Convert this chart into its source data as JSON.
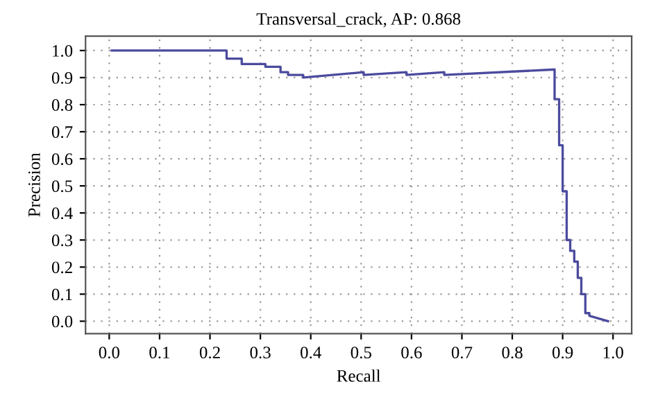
{
  "chart_data": {
    "type": "line",
    "title": "Transversal_crack, AP: 0.868",
    "xlabel": "Recall",
    "ylabel": "Precision",
    "series": [
      {
        "color": "#4b4b9e",
        "x": [
          0.005,
          0.233,
          0.233,
          0.263,
          0.263,
          0.31,
          0.31,
          0.34,
          0.34,
          0.355,
          0.355,
          0.385,
          0.385,
          0.505,
          0.505,
          0.59,
          0.59,
          0.665,
          0.665,
          0.884,
          0.884,
          0.893,
          0.893,
          0.9,
          0.9,
          0.908,
          0.908,
          0.915,
          0.915,
          0.923,
          0.923,
          0.93,
          0.93,
          0.937,
          0.937,
          0.945,
          0.945,
          0.953,
          0.953,
          0.99
        ],
        "values": [
          1.0,
          1.0,
          0.97,
          0.97,
          0.95,
          0.95,
          0.94,
          0.94,
          0.92,
          0.92,
          0.91,
          0.91,
          0.9,
          0.92,
          0.91,
          0.92,
          0.91,
          0.92,
          0.91,
          0.93,
          0.82,
          0.82,
          0.65,
          0.65,
          0.48,
          0.48,
          0.3,
          0.3,
          0.26,
          0.26,
          0.22,
          0.22,
          0.16,
          0.16,
          0.1,
          0.1,
          0.03,
          0.03,
          0.02,
          0.0
        ]
      }
    ],
    "xlim": [
      -0.047,
      1.037
    ],
    "ylim": [
      -0.046,
      1.053
    ],
    "xticks": [
      {
        "value": 0,
        "label": "0.0"
      },
      0.1,
      0.2,
      0.3,
      0.4,
      0.5,
      0.6,
      0.7,
      0.8,
      0.9,
      {
        "value": 1,
        "label": "1.0"
      }
    ],
    "yticks": [
      {
        "value": 0,
        "label": "0.0"
      },
      0.1,
      0.2,
      0.3,
      0.4,
      0.5,
      0.6,
      0.7,
      0.8,
      0.9,
      {
        "value": 1,
        "label": "1.0"
      }
    ],
    "grid": true,
    "line_style": "solid",
    "marker": "none",
    "legend": false
  }
}
